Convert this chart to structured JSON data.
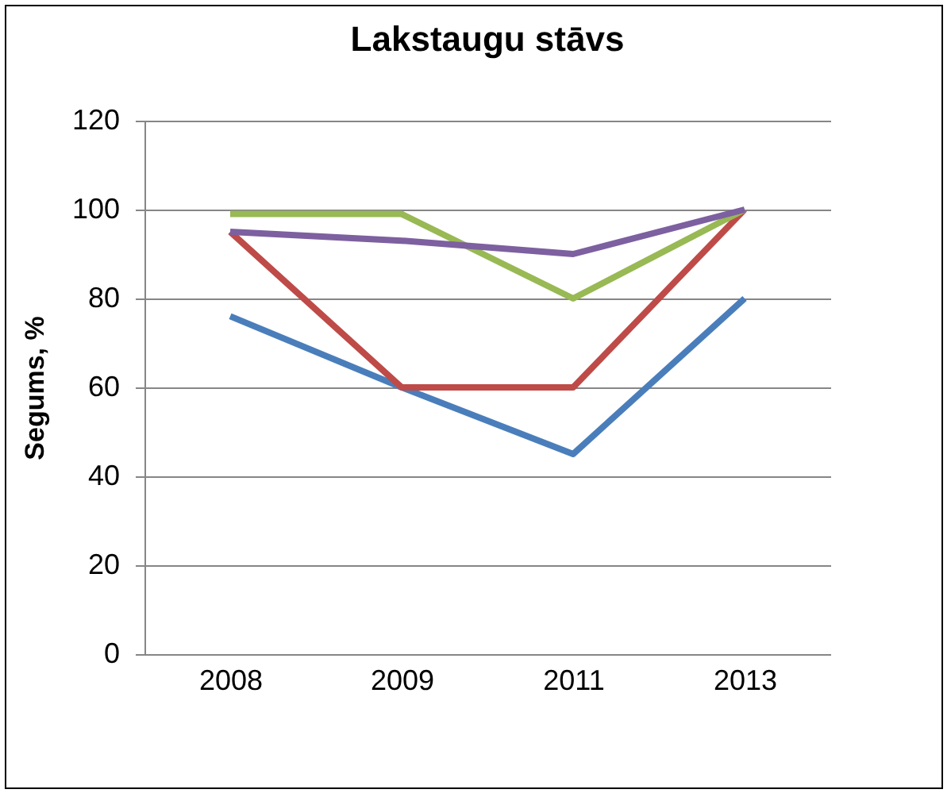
{
  "chart_data": {
    "type": "line",
    "title": "Lakstaugu stāvs",
    "ylabel": "Segums, %",
    "categories": [
      "2008",
      "2009",
      "2011",
      "2013"
    ],
    "series": [
      {
        "color": "#4a7ebb",
        "values": [
          76,
          60,
          45,
          80
        ]
      },
      {
        "color": "#be4b48",
        "values": [
          95,
          60,
          60,
          100
        ]
      },
      {
        "color": "#98b954",
        "values": [
          99,
          99,
          80,
          100
        ]
      },
      {
        "color": "#7d60a0",
        "values": [
          95,
          93,
          90,
          100
        ]
      }
    ],
    "ylim": [
      0,
      120
    ],
    "yticks": [
      0,
      20,
      40,
      60,
      80,
      100,
      120
    ],
    "grid": "y",
    "legend": false,
    "marker": "none",
    "line_style": "solid"
  }
}
